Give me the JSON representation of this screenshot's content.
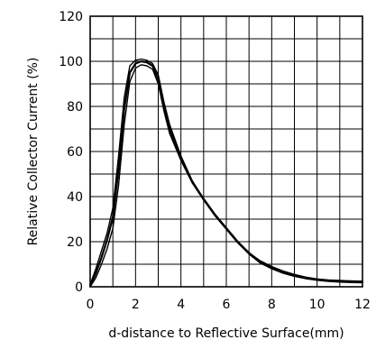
{
  "chart_data": {
    "type": "line",
    "title": "",
    "xlabel": "d-distance to Reflective Surface(mm)",
    "ylabel": "Relative Collector Current (%)",
    "xlim": [
      0,
      12
    ],
    "ylim": [
      0,
      120
    ],
    "x_ticks": [
      "0",
      "2",
      "4",
      "6",
      "8",
      "10",
      "12"
    ],
    "y_ticks": [
      "0",
      "20",
      "40",
      "60",
      "80",
      "100",
      "120"
    ],
    "grid": true,
    "line_color": "#000000",
    "series": [
      {
        "x": [
          0,
          0.25,
          0.5,
          0.75,
          1.0,
          1.25,
          1.5,
          1.75,
          2.0,
          2.25,
          2.5,
          2.75,
          3.0,
          3.25,
          3.5,
          4.0,
          4.5,
          5.0,
          5.5,
          6.0,
          6.5,
          7.0,
          7.5,
          8.0,
          8.5,
          9.0,
          9.5,
          10.0,
          10.5,
          11.0,
          11.5,
          12.0
        ],
        "values": [
          1,
          8,
          16,
          24,
          35,
          58,
          84,
          98,
          100.5,
          101,
          100.5,
          99,
          94,
          82,
          72,
          58,
          47,
          39,
          32,
          26,
          20,
          15,
          11.5,
          9,
          7,
          5.5,
          4.3,
          3.5,
          3,
          2.8,
          2.6,
          2.5
        ]
      },
      {
        "x": [
          0,
          0.25,
          0.5,
          0.75,
          1.0,
          1.25,
          1.5,
          1.75,
          2.0,
          2.25,
          2.5,
          2.75,
          3.0,
          3.25,
          3.5,
          4.0,
          4.5,
          5.0,
          5.5,
          6.0,
          6.5,
          7.0,
          7.5,
          8.0,
          8.5,
          9.0,
          9.5,
          10.0,
          10.5,
          11.0,
          11.5,
          12.0
        ],
        "values": [
          0.5,
          6,
          13,
          21,
          31,
          52,
          79,
          95,
          99,
          100,
          99.5,
          98,
          92,
          80,
          70,
          57,
          46.5,
          39,
          32,
          26,
          20,
          15,
          11,
          8.5,
          6.5,
          5,
          4,
          3.2,
          2.7,
          2.4,
          2.2,
          2.1
        ]
      },
      {
        "x": [
          0,
          0.25,
          0.5,
          0.75,
          1.0,
          1.25,
          1.5,
          1.75,
          2.0,
          2.25,
          2.5,
          2.75,
          3.0,
          3.25,
          3.5,
          4.0,
          4.5,
          5.0,
          5.5,
          6.0,
          6.5,
          7.0,
          7.5,
          8.0,
          8.5,
          9.0,
          9.5,
          10.0,
          10.5,
          11.0,
          11.5,
          12.0
        ],
        "values": [
          0,
          4,
          10,
          17,
          26,
          45,
          72,
          91,
          97,
          98.5,
          98,
          96.5,
          90,
          78,
          68,
          56,
          46,
          38.5,
          31.5,
          25.5,
          19.5,
          14.5,
          10.5,
          8,
          6,
          4.6,
          3.6,
          2.9,
          2.4,
          2.1,
          1.9,
          1.8
        ]
      }
    ]
  }
}
